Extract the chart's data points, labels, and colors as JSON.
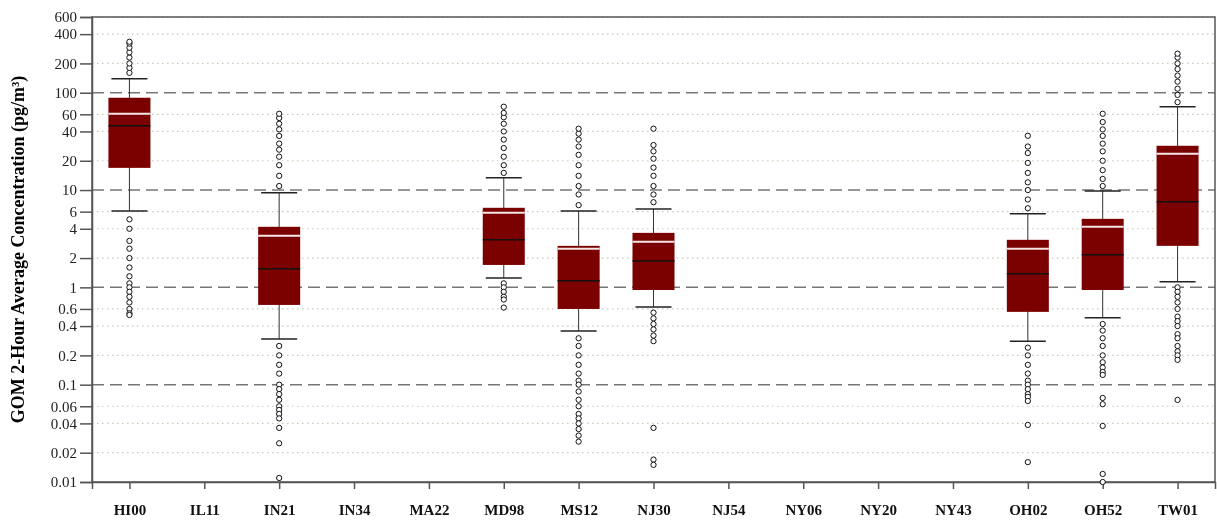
{
  "chart_data": {
    "type": "box",
    "ylabel": "GOM 2-Hour Average Concentration (pg/m³)",
    "categories": [
      "HI00",
      "IL11",
      "IN21",
      "IN34",
      "MA22",
      "MD98",
      "MS12",
      "NJ30",
      "NJ54",
      "NY06",
      "NY20",
      "NY43",
      "OH02",
      "OH52",
      "TW01"
    ],
    "color": "#7b0000",
    "log": true,
    "ylim": [
      0.01,
      600
    ],
    "yticks": [
      0.01,
      0.02,
      0.04,
      0.06,
      0.1,
      0.2,
      0.4,
      0.6,
      1,
      2,
      4,
      6,
      10,
      20,
      40,
      60,
      100,
      200,
      400,
      600
    ],
    "grid": "y",
    "marker": "circle",
    "boxes": [
      {
        "low": 6.1,
        "q1": 16.9,
        "median": 45.8,
        "q3": 88.8,
        "high": 139,
        "mean": 60.8,
        "outliers": [
          160,
          180,
          200,
          230,
          260,
          290,
          320,
          334,
          5,
          4,
          3,
          2.5,
          2,
          1.6,
          1.3,
          1.1,
          1,
          0.9,
          0.8,
          0.7,
          0.6,
          0.54,
          0.52
        ]
      },
      null,
      {
        "low": 0.295,
        "q1": 0.66,
        "median": 1.55,
        "q3": 4.19,
        "high": 9.4,
        "mean": 3.39,
        "outliers": [
          11,
          14,
          18,
          22,
          26,
          30,
          36,
          42,
          48,
          55,
          60.8,
          0.25,
          0.2,
          0.16,
          0.13,
          0.1,
          0.09,
          0.08,
          0.07,
          0.06,
          0.055,
          0.05,
          0.045,
          0.036,
          0.025,
          0.011
        ]
      },
      null,
      null,
      {
        "low": 1.25,
        "q1": 1.7,
        "median": 3.08,
        "q3": 6.57,
        "high": 13.4,
        "mean": 5.83,
        "outliers": [
          15,
          18,
          22,
          27,
          33,
          40,
          48,
          56,
          62,
          71.8,
          1.1,
          1,
          0.9,
          0.8,
          0.75,
          0.62
        ]
      },
      {
        "low": 0.357,
        "q1": 0.6,
        "median": 1.17,
        "q3": 2.67,
        "high": 6.1,
        "mean": 2.49,
        "outliers": [
          7,
          9,
          11,
          14,
          18,
          23,
          28,
          33,
          38,
          42.7,
          0.3,
          0.25,
          0.2,
          0.16,
          0.13,
          0.11,
          0.1,
          0.085,
          0.07,
          0.06,
          0.05,
          0.045,
          0.04,
          0.035,
          0.03,
          0.026
        ]
      },
      {
        "low": 0.63,
        "q1": 0.94,
        "median": 1.87,
        "q3": 3.63,
        "high": 6.4,
        "mean": 2.94,
        "outliers": [
          7.5,
          9,
          11,
          14,
          17,
          21,
          25,
          29,
          42.7,
          0.55,
          0.48,
          0.42,
          0.37,
          0.32,
          0.28,
          0.036,
          0.017,
          0.015
        ]
      },
      null,
      null,
      null,
      null,
      {
        "low": 0.28,
        "q1": 0.56,
        "median": 1.38,
        "q3": 3.08,
        "high": 5.7,
        "mean": 2.49,
        "outliers": [
          6.5,
          8,
          10,
          12,
          15,
          19,
          24,
          28,
          36.1,
          0.24,
          0.2,
          0.16,
          0.13,
          0.11,
          0.1,
          0.09,
          0.08,
          0.075,
          0.068,
          0.0386,
          0.016
        ]
      },
      {
        "low": 0.486,
        "q1": 0.94,
        "median": 2.16,
        "q3": 5.06,
        "high": 9.8,
        "mean": 4.19,
        "outliers": [
          11,
          13,
          16,
          20,
          25,
          30,
          36,
          42,
          50,
          60.8,
          0.42,
          0.36,
          0.3,
          0.25,
          0.2,
          0.17,
          0.15,
          0.135,
          0.126,
          0.073,
          0.063,
          0.0377,
          0.0121,
          0.01
        ]
      },
      {
        "low": 1.14,
        "q1": 2.67,
        "median": 7.57,
        "q3": 28.5,
        "high": 71.8,
        "mean": 23.6,
        "outliers": [
          80,
          95,
          110,
          130,
          150,
          175,
          200,
          230,
          252,
          1,
          0.9,
          0.8,
          0.7,
          0.6,
          0.5,
          0.45,
          0.4,
          0.33,
          0.3,
          0.25,
          0.22,
          0.2,
          0.18,
          0.0697
        ]
      }
    ]
  }
}
